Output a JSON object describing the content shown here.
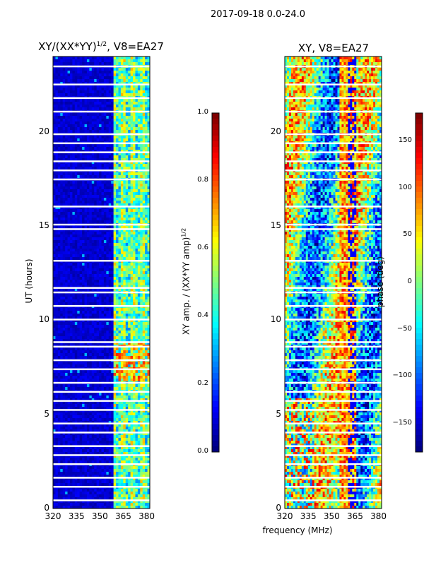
{
  "figure_title": "2017-09-18 0.0-24.0",
  "panels": [
    {
      "title_prefix": "XY/(XX*YY)",
      "title_power": "1/2",
      "title_suffix": ", V8=EA27",
      "ylabel": "UT (hours)"
    },
    {
      "title": "XY, V8=EA27",
      "shared_xlabel": "frequency (MHz)"
    }
  ],
  "colorbars": [
    {
      "label": "XY amp. / (XX*YY amp)",
      "label_power": "1/2",
      "ticks": [
        "0.0",
        "0.2",
        "0.4",
        "0.6",
        "0.8",
        "1.0"
      ]
    },
    {
      "label": "phase (deg)",
      "ticks": [
        "−150",
        "−100",
        "−50",
        "0",
        "50",
        "100",
        "150"
      ]
    }
  ],
  "chart_data": [
    {
      "type": "heatmap",
      "title": "XY/(XX*YY)^1/2, V8=EA27",
      "xlabel": "frequency (MHz)",
      "ylabel": "UT (hours)",
      "xlim": [
        320,
        382
      ],
      "ylim": [
        0,
        24
      ],
      "xticks": [
        320,
        335,
        350,
        365,
        380
      ],
      "yticks": [
        0,
        5,
        10,
        15,
        20
      ],
      "colorbar": {
        "label": "XY amp. / (XX*YY amp)^1/2",
        "range": [
          0.0,
          1.0
        ],
        "ticks": [
          0.0,
          0.2,
          0.4,
          0.6,
          0.8,
          1.0
        ]
      }
    },
    {
      "type": "heatmap",
      "title": "XY, V8=EA27",
      "xlabel": "frequency (MHz)",
      "ylabel": "",
      "xlim": [
        320,
        382
      ],
      "ylim": [
        0,
        24
      ],
      "xticks": [
        320,
        335,
        350,
        365,
        380
      ],
      "yticks": [
        0,
        5,
        10,
        15,
        20
      ],
      "colorbar": {
        "label": "phase (deg)",
        "range": [
          -180,
          180
        ],
        "ticks": [
          -150,
          -100,
          -50,
          0,
          50,
          100,
          150
        ]
      }
    }
  ]
}
